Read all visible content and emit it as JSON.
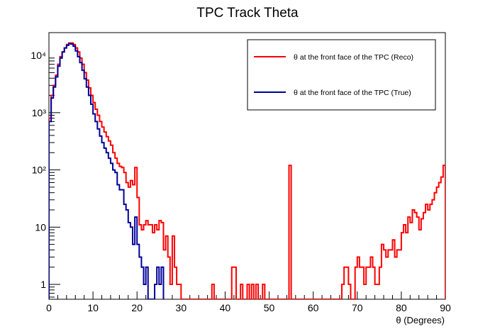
{
  "chart_data": {
    "type": "histogram",
    "title": "TPC Track Theta",
    "xlabel": "θ (Degrees)",
    "ylabel": "",
    "xlim": [
      0,
      90
    ],
    "ylim": [
      0.55,
      25000
    ],
    "yscale": "log",
    "bin_width": 0.5,
    "grid": false,
    "legend_position": "top-right",
    "x_ticks": [
      0,
      10,
      20,
      30,
      40,
      50,
      60,
      70,
      80,
      90
    ],
    "x_tick_labels": [
      "0",
      "10",
      "20",
      "30",
      "40",
      "50",
      "60",
      "70",
      "80",
      "90"
    ],
    "y_ticks": [
      1,
      10,
      100,
      1000,
      10000
    ],
    "y_tick_labels": [
      "1",
      "10",
      "10²",
      "10³",
      "10⁴"
    ],
    "series": [
      {
        "name": "θ at the front face of the TPC (Reco)",
        "color": "#ff0000",
        "points": [
          [
            0,
            800
          ],
          [
            0.5,
            2000
          ],
          [
            1,
            3000
          ],
          [
            1.5,
            4500
          ],
          [
            2,
            7000
          ],
          [
            2.5,
            9500
          ],
          [
            3,
            11500
          ],
          [
            3.5,
            13500
          ],
          [
            4,
            15500
          ],
          [
            4.5,
            16500
          ],
          [
            5,
            16500
          ],
          [
            5.5,
            15500
          ],
          [
            6,
            13500
          ],
          [
            6.5,
            11500
          ],
          [
            7,
            9000
          ],
          [
            7.5,
            7000
          ],
          [
            8,
            5000
          ],
          [
            8.5,
            3700
          ],
          [
            9,
            2700
          ],
          [
            9.5,
            2000
          ],
          [
            10,
            1500
          ],
          [
            10.5,
            1150
          ],
          [
            11,
            900
          ],
          [
            11.5,
            700
          ],
          [
            12,
            560
          ],
          [
            12.5,
            460
          ],
          [
            13,
            380
          ],
          [
            13.5,
            320
          ],
          [
            14,
            270
          ],
          [
            14.5,
            200
          ],
          [
            15,
            160
          ],
          [
            15.5,
            130
          ],
          [
            16,
            115
          ],
          [
            16.5,
            110
          ],
          [
            17,
            90
          ],
          [
            17.5,
            60
          ],
          [
            18,
            50
          ],
          [
            18.5,
            65
          ],
          [
            19,
            55
          ],
          [
            19.5,
            110
          ],
          [
            20,
            33
          ],
          [
            20.5,
            11
          ],
          [
            21,
            9
          ],
          [
            21.5,
            11
          ],
          [
            22,
            13
          ],
          [
            22.5,
            11
          ],
          [
            23,
            11
          ],
          [
            23.5,
            8
          ],
          [
            24,
            11
          ],
          [
            24.5,
            9
          ],
          [
            25,
            13
          ],
          [
            25.5,
            12
          ],
          [
            26,
            4
          ],
          [
            26.5,
            7
          ],
          [
            27,
            3
          ],
          [
            27.5,
            1
          ],
          [
            28,
            7
          ],
          [
            28.5,
            2
          ],
          [
            29,
            1
          ],
          [
            29.5,
            1
          ],
          [
            37,
            1
          ],
          [
            41.5,
            2
          ],
          [
            42,
            2
          ],
          [
            43.5,
            1
          ],
          [
            45,
            1
          ],
          [
            46,
            1
          ],
          [
            47,
            1
          ],
          [
            48.5,
            1
          ],
          [
            54.5,
            120
          ],
          [
            66.5,
            1
          ],
          [
            67,
            2
          ],
          [
            67.5,
            2
          ],
          [
            68,
            1
          ],
          [
            69.5,
            2
          ],
          [
            70,
            3
          ],
          [
            70.5,
            2
          ],
          [
            71,
            2
          ],
          [
            71.5,
            1
          ],
          [
            72,
            2
          ],
          [
            72.5,
            2
          ],
          [
            73,
            3
          ],
          [
            73.5,
            2
          ],
          [
            74,
            1
          ],
          [
            74.5,
            1
          ],
          [
            75,
            2
          ],
          [
            75.5,
            5
          ],
          [
            76,
            4
          ],
          [
            76.5,
            3
          ],
          [
            77,
            4
          ],
          [
            77.5,
            4
          ],
          [
            78,
            6
          ],
          [
            78.5,
            3
          ],
          [
            79,
            4
          ],
          [
            79.5,
            4
          ],
          [
            80,
            8
          ],
          [
            80.5,
            11
          ],
          [
            81,
            8
          ],
          [
            81.5,
            15
          ],
          [
            82,
            12
          ],
          [
            82.5,
            20
          ],
          [
            83,
            18
          ],
          [
            83.5,
            15
          ],
          [
            84,
            9
          ],
          [
            84.5,
            14
          ],
          [
            85,
            18
          ],
          [
            85.5,
            25
          ],
          [
            86,
            20
          ],
          [
            86.5,
            25
          ],
          [
            87,
            30
          ],
          [
            87.5,
            40
          ],
          [
            88,
            50
          ],
          [
            88.5,
            60
          ],
          [
            89,
            75
          ],
          [
            89.5,
            120
          ]
        ]
      },
      {
        "name": "θ at the front face of the TPC (True)",
        "color": "#000099",
        "points": [
          [
            0,
            700
          ],
          [
            0.5,
            1800
          ],
          [
            1,
            2800
          ],
          [
            1.5,
            4200
          ],
          [
            2,
            6500
          ],
          [
            2.5,
            9000
          ],
          [
            3,
            11500
          ],
          [
            3.5,
            13500
          ],
          [
            4,
            15000
          ],
          [
            4.5,
            16000
          ],
          [
            5,
            15800
          ],
          [
            5.5,
            14500
          ],
          [
            6,
            12000
          ],
          [
            6.5,
            9500
          ],
          [
            7,
            7500
          ],
          [
            7.5,
            5500
          ],
          [
            8,
            3900
          ],
          [
            8.5,
            2800
          ],
          [
            9,
            2000
          ],
          [
            9.5,
            1400
          ],
          [
            10,
            950
          ],
          [
            10.5,
            700
          ],
          [
            11,
            520
          ],
          [
            11.5,
            390
          ],
          [
            12,
            300
          ],
          [
            12.5,
            240
          ],
          [
            13,
            200
          ],
          [
            13.5,
            160
          ],
          [
            14,
            130
          ],
          [
            14.5,
            100
          ],
          [
            15,
            90
          ],
          [
            15.5,
            55
          ],
          [
            16,
            45
          ],
          [
            16.5,
            45
          ],
          [
            17,
            25
          ],
          [
            17.5,
            20
          ],
          [
            18,
            12
          ],
          [
            18.5,
            10
          ],
          [
            19,
            5
          ],
          [
            19.5,
            15
          ],
          [
            20,
            5
          ],
          [
            20.5,
            3
          ],
          [
            21,
            2
          ],
          [
            21.5,
            1
          ],
          [
            22,
            2
          ],
          [
            22.5,
            0
          ],
          [
            23,
            0
          ],
          [
            23.5,
            0
          ],
          [
            24,
            1
          ],
          [
            24.5,
            2
          ],
          [
            25,
            1
          ],
          [
            25.5,
            2
          ]
        ]
      }
    ]
  }
}
